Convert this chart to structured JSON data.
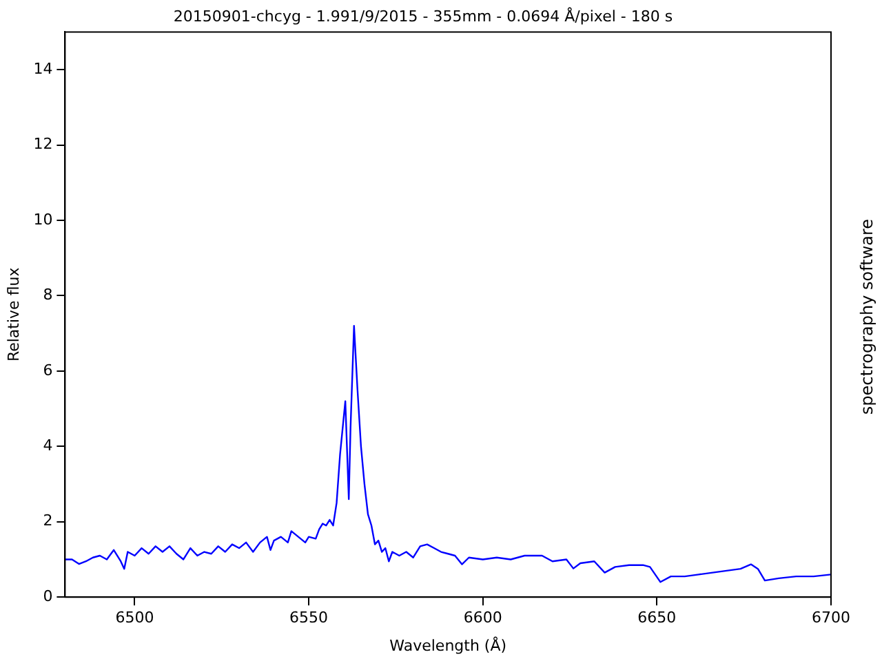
{
  "chart_data": {
    "type": "line",
    "title": "20150901-chcyg - 1.991/9/2015 - 355mm - 0.0694 Å/pixel - 180 s",
    "xlabel": "Wavelength (Å)",
    "ylabel": "Relative flux",
    "y2label": "spectrography software",
    "xlim": [
      6480,
      6700
    ],
    "xticks": [
      6500,
      6550,
      6600,
      6650,
      6700
    ],
    "ylim": [
      0,
      15
    ],
    "yticks": [
      0,
      2,
      4,
      6,
      8,
      10,
      12,
      14
    ],
    "grid": false,
    "legend": false,
    "marker": "none",
    "line_style": "solid",
    "series": [
      {
        "color": "#0000ff",
        "x": [
          6480,
          6482,
          6484,
          6486,
          6488,
          6490,
          6492,
          6494,
          6496,
          6497,
          6498,
          6500,
          6502,
          6504,
          6506,
          6508,
          6510,
          6512,
          6514,
          6516,
          6518,
          6520,
          6522,
          6524,
          6526,
          6528,
          6530,
          6532,
          6534,
          6536,
          6538,
          6539,
          6540,
          6542,
          6544,
          6545,
          6547,
          6549,
          6550,
          6552,
          6553,
          6554,
          6555,
          6556,
          6557,
          6558,
          6559,
          6560.5,
          6561.5,
          6562,
          6563,
          6564,
          6565,
          6566,
          6567,
          6568,
          6569,
          6570,
          6571,
          6572,
          6573,
          6574,
          6576,
          6578,
          6580,
          6582,
          6584,
          6586,
          6588,
          6590,
          6592,
          6594,
          6596,
          6600,
          6604,
          6608,
          6612,
          6617,
          6620,
          6624,
          6626,
          6628,
          6632,
          6635,
          6638,
          6642,
          6646,
          6648,
          6651,
          6654,
          6658,
          6662,
          6666,
          6670,
          6674,
          6677,
          6679,
          6681,
          6685,
          6690,
          6695,
          6700
        ],
        "values": [
          1.0,
          1.0,
          0.88,
          0.95,
          1.05,
          1.1,
          1.0,
          1.25,
          0.95,
          0.75,
          1.2,
          1.1,
          1.3,
          1.15,
          1.35,
          1.2,
          1.35,
          1.15,
          1.0,
          1.3,
          1.1,
          1.2,
          1.15,
          1.35,
          1.2,
          1.4,
          1.3,
          1.45,
          1.2,
          1.45,
          1.6,
          1.25,
          1.5,
          1.6,
          1.45,
          1.75,
          1.6,
          1.45,
          1.6,
          1.55,
          1.8,
          1.95,
          1.9,
          2.05,
          1.9,
          2.5,
          3.8,
          5.2,
          2.6,
          4.5,
          7.2,
          5.5,
          4.0,
          3.0,
          2.2,
          1.9,
          1.4,
          1.5,
          1.2,
          1.3,
          0.95,
          1.2,
          1.1,
          1.2,
          1.05,
          1.35,
          1.4,
          1.3,
          1.2,
          1.15,
          1.1,
          0.87,
          1.05,
          1.0,
          1.05,
          1.0,
          1.1,
          1.1,
          0.95,
          1.0,
          0.76,
          0.9,
          0.95,
          0.65,
          0.8,
          0.85,
          0.85,
          0.8,
          0.4,
          0.55,
          0.55,
          0.6,
          0.65,
          0.7,
          0.75,
          0.87,
          0.75,
          0.44,
          0.5,
          0.55,
          0.55,
          0.6
        ]
      }
    ]
  }
}
